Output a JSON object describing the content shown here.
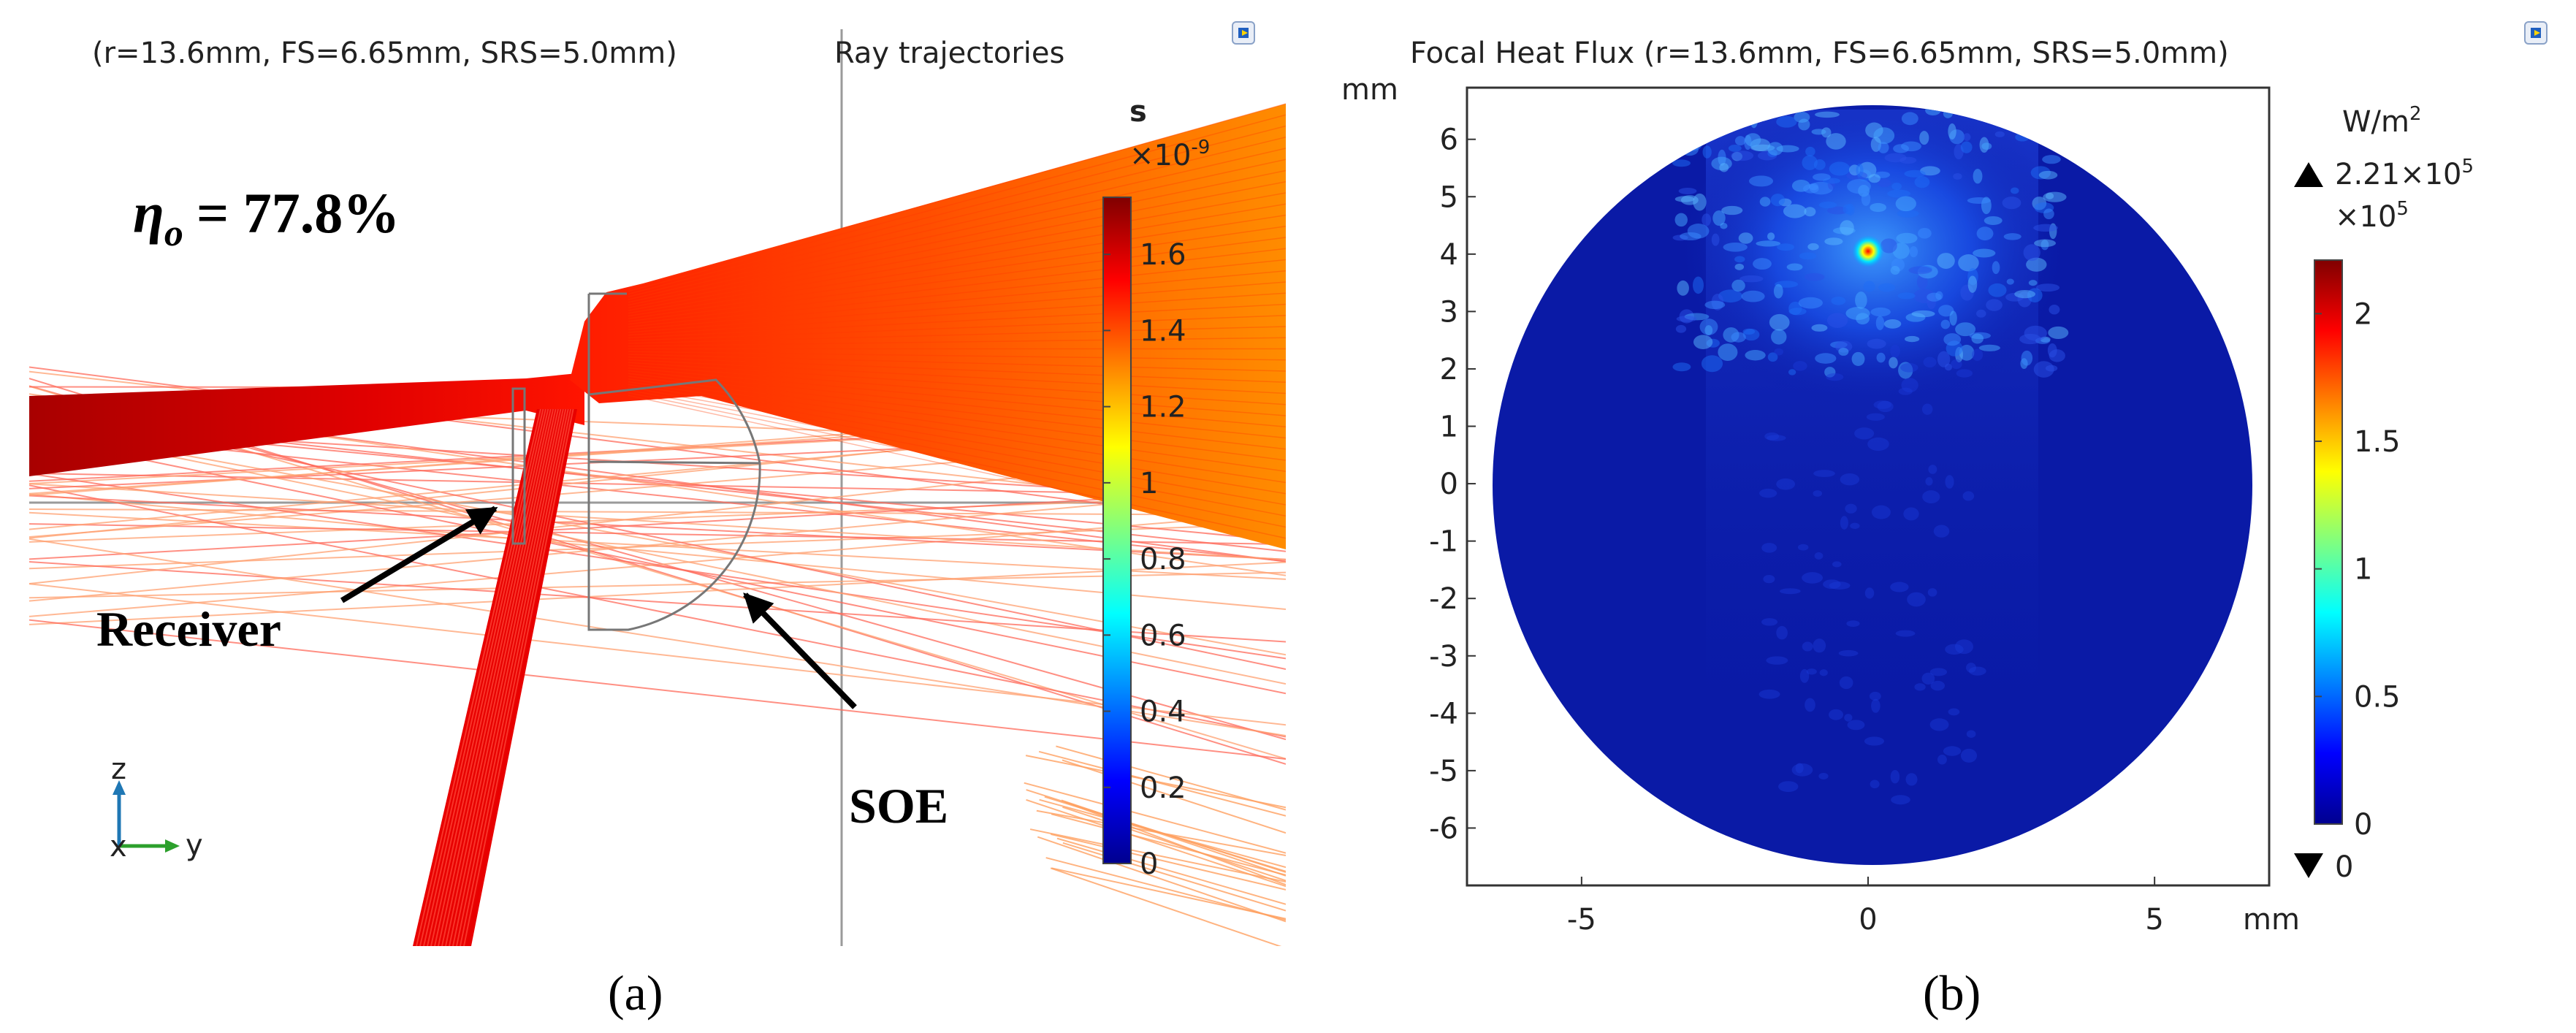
{
  "panel_a": {
    "title_params": "(r=13.6mm, FS=6.65mm, SRS=5.0mm)",
    "title_plot": "Ray trajectories",
    "efficiency_symbol": "η",
    "efficiency_sub": "o",
    "efficiency_value": "= 77.8%",
    "label_receiver": "Receiver",
    "label_soe": "SOE",
    "axis_z": "z",
    "axis_x": "x",
    "axis_y": "y",
    "caption": "(a)",
    "colorbar": {
      "unit": "s",
      "multiplier": "×10",
      "exponent": "-9",
      "ticks": [
        "0",
        "0.2",
        "0.4",
        "0.6",
        "0.8",
        "1",
        "1.2",
        "1.4",
        "1.6"
      ]
    }
  },
  "panel_b": {
    "title": "Focal Heat Flux (r=13.6mm, FS=6.65mm, SRS=5.0mm)",
    "axis_unit": "mm",
    "caption": "(b)",
    "colorbar": {
      "unit": "W/m",
      "unit_exp": "2",
      "max_label": "2.21×10",
      "max_exp": "5",
      "multiplier": "×10",
      "mult_exp": "5",
      "min_label": "0",
      "ticks": [
        "0",
        "0.5",
        "1",
        "1.5",
        "2"
      ]
    }
  },
  "chart_data": [
    {
      "type": "ray-trajectory",
      "title": "(r=13.6mm, FS=6.65mm, SRS=5.0mm) Ray trajectories",
      "colorbar_label": "s ×10^-9",
      "colorbar_range": [
        0,
        1.75
      ],
      "annotations": [
        "Receiver",
        "SOE",
        "η_o = 77.8%"
      ],
      "optical_efficiency_percent": 77.8
    },
    {
      "type": "heatmap",
      "title": "Focal Heat Flux (r=13.6mm, FS=6.65mm, SRS=5.0mm)",
      "x_ticks": [
        -5,
        0,
        5
      ],
      "y_ticks": [
        6,
        5,
        4,
        3,
        2,
        1,
        0,
        -1,
        -2,
        -3,
        -4,
        -5,
        -6
      ],
      "xlim": [
        -7,
        7
      ],
      "ylim": [
        -7,
        6.9
      ],
      "xlabel": "mm",
      "ylabel": "mm",
      "receiver_radius_mm": 6.65,
      "peak_flux_W_m2": 221000,
      "min_flux_W_m2": 0,
      "hotspot_mm": [
        0,
        4.05
      ],
      "colorbar_range": [
        0,
        2.21
      ],
      "colorbar_label": "W/m^2 ×10^5"
    }
  ],
  "colors": {
    "ray_dark": "#b00000",
    "ray_red": "#ff1a00",
    "ray_orange": "#ff8a00",
    "receiver_fill": "#0a1aa6",
    "axis_blue": "#1f77b4",
    "axis_green": "#2ca02c"
  }
}
